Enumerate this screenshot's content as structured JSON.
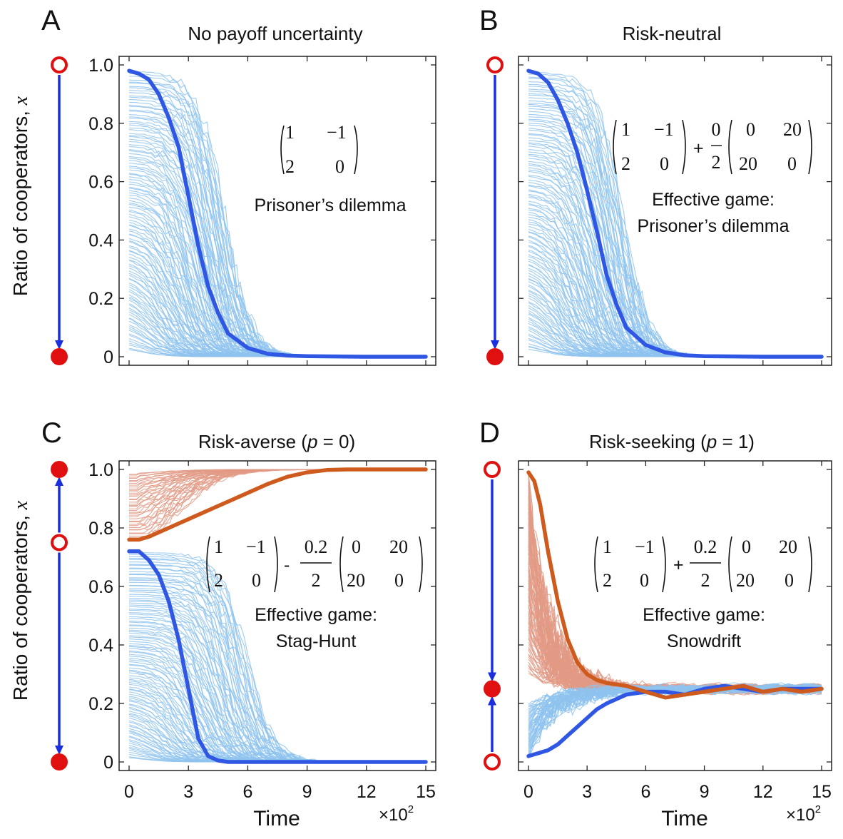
{
  "figure": {
    "y_axis_label": "Ratio of cooperators, ",
    "y_axis_var": "x",
    "x_axis_label": "Time",
    "x_scale_label": "×10",
    "x_scale_exp": "2",
    "colors": {
      "blue_light": "#8ec3ef",
      "blue_bold": "#2f57e4",
      "orange_light": "#e29a85",
      "orange_bold": "#cf5a1d",
      "arrow": "#1a2fe0",
      "circle": "#e01010"
    }
  },
  "chart_data": [
    {
      "id": "A",
      "letter": "A",
      "type": "line",
      "title": "No payoff uncertainty",
      "title_parts": [
        {
          "t": "No payoff uncertainty",
          "i": false
        }
      ],
      "xlabel": "",
      "ylabel": "Ratio of cooperators, x",
      "xlim": [
        0,
        15
      ],
      "ylim": [
        0,
        1
      ],
      "xticks": [
        0,
        3,
        6,
        9,
        12,
        15
      ],
      "show_xtick_labels": false,
      "yticks": [
        0,
        0.2,
        0.4,
        0.6,
        0.8,
        1.0
      ],
      "ytick_labels": [
        "0",
        "0.2",
        "0.4",
        "0.6",
        "0.8",
        "1.0"
      ],
      "bundles": [
        {
          "color": "blue",
          "count": 120,
          "start_range": [
            0.02,
            0.98
          ],
          "behavior": "decay",
          "rate": 0.9
        }
      ],
      "series": [
        {
          "name": "representative",
          "color": "blue_bold",
          "x": [
            0,
            0.5,
            1,
            1.5,
            2,
            2.5,
            3,
            3.5,
            4,
            4.5,
            5,
            6,
            7,
            8,
            9,
            12,
            15
          ],
          "y": [
            0.98,
            0.97,
            0.95,
            0.9,
            0.82,
            0.72,
            0.55,
            0.38,
            0.24,
            0.15,
            0.08,
            0.03,
            0.01,
            0.004,
            0.002,
            0.0,
            0.0
          ]
        }
      ],
      "phase_line": {
        "points": [
          {
            "y": 1.0,
            "kind": "unstable"
          },
          {
            "y": 0.0,
            "kind": "stable"
          }
        ],
        "arrows": [
          {
            "from": 1.0,
            "to": 0.0
          }
        ]
      },
      "payoff_text": {
        "base_matrix": [
          [
            "1",
            "−1"
          ],
          [
            "2",
            "0"
          ]
        ],
        "operator": "",
        "coefficient": "",
        "uncertainty_matrix": [],
        "effective_prefix": "",
        "game_name": "Prisoner’s dilemma"
      }
    },
    {
      "id": "B",
      "letter": "B",
      "type": "line",
      "title": "Risk-neutral",
      "title_parts": [
        {
          "t": "Risk-neutral",
          "i": false
        }
      ],
      "xlabel": "",
      "ylabel": "",
      "xlim": [
        0,
        15
      ],
      "ylim": [
        0,
        1
      ],
      "xticks": [
        0,
        3,
        6,
        9,
        12,
        15
      ],
      "show_xtick_labels": false,
      "yticks": [
        0,
        0.2,
        0.4,
        0.6,
        0.8,
        1.0
      ],
      "ytick_labels": [],
      "bundles": [
        {
          "color": "blue",
          "count": 120,
          "start_range": [
            0.02,
            0.98
          ],
          "behavior": "decay",
          "rate": 0.9
        }
      ],
      "series": [
        {
          "name": "representative",
          "color": "blue_bold",
          "x": [
            0,
            0.5,
            1,
            1.5,
            2,
            2.5,
            3,
            3.5,
            4,
            4.5,
            5,
            6,
            7,
            8,
            9,
            12,
            15
          ],
          "y": [
            0.98,
            0.97,
            0.94,
            0.88,
            0.8,
            0.7,
            0.57,
            0.43,
            0.28,
            0.18,
            0.1,
            0.04,
            0.015,
            0.005,
            0.002,
            0.0,
            0.0
          ]
        }
      ],
      "phase_line": {
        "points": [
          {
            "y": 1.0,
            "kind": "unstable"
          },
          {
            "y": 0.0,
            "kind": "stable"
          }
        ],
        "arrows": [
          {
            "from": 1.0,
            "to": 0.0
          }
        ]
      },
      "payoff_text": {
        "base_matrix": [
          [
            "1",
            "−1"
          ],
          [
            "2",
            "0"
          ]
        ],
        "operator": "+",
        "coefficient_num": "0",
        "coefficient_den": "2",
        "uncertainty_matrix": [
          [
            "0",
            "20"
          ],
          [
            "20",
            "0"
          ]
        ],
        "effective_prefix": "Effective game:",
        "game_name": "Prisoner’s dilemma"
      }
    },
    {
      "id": "C",
      "letter": "C",
      "type": "line",
      "title": "Risk-averse (p = 0)",
      "title_parts": [
        {
          "t": "Risk-averse (",
          "i": false
        },
        {
          "t": "p",
          "i": true
        },
        {
          "t": " = 0)",
          "i": false
        }
      ],
      "xlabel": "Time",
      "ylabel": "Ratio of cooperators, x",
      "xlim": [
        0,
        15
      ],
      "ylim": [
        0,
        1
      ],
      "xticks": [
        0,
        3,
        6,
        9,
        12,
        15
      ],
      "xtick_labels": [
        "0",
        "3",
        "6",
        "9",
        "12",
        "15"
      ],
      "show_xtick_labels": true,
      "x_scale": "×10^2",
      "yticks": [
        0,
        0.2,
        0.4,
        0.6,
        0.8,
        1.0
      ],
      "ytick_labels": [
        "0",
        "0.2",
        "0.4",
        "0.6",
        "0.8",
        "1.0"
      ],
      "bundles": [
        {
          "color": "blue",
          "count": 110,
          "start_range": [
            0.01,
            0.72
          ],
          "behavior": "decay",
          "rate": 1.5
        },
        {
          "color": "orange",
          "count": 40,
          "start_range": [
            0.76,
            0.99
          ],
          "behavior": "rise",
          "rate": 1.0
        }
      ],
      "series": [
        {
          "name": "representative-low",
          "color": "blue_bold",
          "x": [
            0,
            0.5,
            1,
            1.5,
            2,
            2.5,
            3,
            3.5,
            4,
            4.5,
            5,
            6,
            9,
            12,
            15
          ],
          "y": [
            0.72,
            0.72,
            0.69,
            0.64,
            0.55,
            0.42,
            0.25,
            0.08,
            0.02,
            0.005,
            0.0,
            0.0,
            0.0,
            0.0,
            0.0
          ]
        },
        {
          "name": "representative-high",
          "color": "orange_bold",
          "x": [
            0,
            0.5,
            1,
            2,
            3,
            4,
            5,
            6,
            7,
            8,
            9,
            10,
            11,
            12,
            15
          ],
          "y": [
            0.76,
            0.76,
            0.77,
            0.8,
            0.83,
            0.86,
            0.89,
            0.92,
            0.95,
            0.975,
            0.99,
            0.998,
            1.0,
            1.0,
            1.0
          ]
        }
      ],
      "phase_line": {
        "points": [
          {
            "y": 1.0,
            "kind": "stable"
          },
          {
            "y": 0.75,
            "kind": "unstable"
          },
          {
            "y": 0.0,
            "kind": "stable"
          }
        ],
        "arrows": [
          {
            "from": 0.75,
            "to": 1.0
          },
          {
            "from": 0.75,
            "to": 0.0
          }
        ]
      },
      "payoff_text": {
        "base_matrix": [
          [
            "1",
            "−1"
          ],
          [
            "2",
            "0"
          ]
        ],
        "operator": "-",
        "coefficient_num": "0.2",
        "coefficient_den": "2",
        "uncertainty_matrix": [
          [
            "0",
            "20"
          ],
          [
            "20",
            "0"
          ]
        ],
        "effective_prefix": "Effective game:",
        "game_name": "Stag-Hunt"
      }
    },
    {
      "id": "D",
      "letter": "D",
      "type": "line",
      "title": "Risk-seeking (p = 1)",
      "title_parts": [
        {
          "t": "Risk-seeking (",
          "i": false
        },
        {
          "t": "p",
          "i": true
        },
        {
          "t": " = 1)",
          "i": false
        }
      ],
      "xlabel": "Time",
      "ylabel": "",
      "xlim": [
        0,
        15
      ],
      "ylim": [
        0,
        1
      ],
      "xticks": [
        0,
        3,
        6,
        9,
        12,
        15
      ],
      "xtick_labels": [
        "0",
        "3",
        "6",
        "9",
        "12",
        "15"
      ],
      "show_xtick_labels": true,
      "x_scale": "×10^2",
      "yticks": [
        0,
        0.2,
        0.4,
        0.6,
        0.8,
        1.0
      ],
      "ytick_labels": [],
      "bundles": [
        {
          "color": "orange",
          "count": 90,
          "start_range": [
            0.3,
            0.99
          ],
          "behavior": "converge",
          "target": 0.25,
          "rate": 1.4
        },
        {
          "color": "blue",
          "count": 50,
          "start_range": [
            0.01,
            0.2
          ],
          "behavior": "converge",
          "target": 0.25,
          "rate": 1.0
        }
      ],
      "series": [
        {
          "name": "representative-low",
          "color": "blue_bold",
          "x": [
            0,
            0.5,
            1,
            1.5,
            2,
            2.5,
            3,
            3.5,
            4,
            5,
            6,
            7,
            8,
            9,
            10,
            11,
            12,
            13,
            14,
            15
          ],
          "y": [
            0.02,
            0.03,
            0.04,
            0.06,
            0.09,
            0.12,
            0.15,
            0.18,
            0.2,
            0.23,
            0.24,
            0.24,
            0.23,
            0.25,
            0.26,
            0.25,
            0.24,
            0.25,
            0.25,
            0.25
          ]
        },
        {
          "name": "representative-high",
          "color": "orange_bold",
          "x": [
            0,
            0.3,
            0.6,
            1,
            1.5,
            2,
            2.5,
            3,
            3.5,
            4,
            5,
            6,
            7,
            8,
            9,
            10,
            11,
            12,
            13,
            14,
            15
          ],
          "y": [
            0.99,
            0.96,
            0.88,
            0.72,
            0.55,
            0.42,
            0.34,
            0.3,
            0.28,
            0.27,
            0.26,
            0.24,
            0.22,
            0.23,
            0.24,
            0.25,
            0.26,
            0.24,
            0.25,
            0.24,
            0.25
          ]
        }
      ],
      "phase_line": {
        "points": [
          {
            "y": 1.0,
            "kind": "unstable"
          },
          {
            "y": 0.25,
            "kind": "stable"
          },
          {
            "y": 0.0,
            "kind": "unstable"
          }
        ],
        "arrows": [
          {
            "from": 1.0,
            "to": 0.25
          },
          {
            "from": 0.0,
            "to": 0.25
          }
        ]
      },
      "payoff_text": {
        "base_matrix": [
          [
            "1",
            "−1"
          ],
          [
            "2",
            "0"
          ]
        ],
        "operator": "+",
        "coefficient_num": "0.2",
        "coefficient_den": "2",
        "uncertainty_matrix": [
          [
            "0",
            "20"
          ],
          [
            "20",
            "0"
          ]
        ],
        "effective_prefix": "Effective game:",
        "game_name": "Snowdrift"
      }
    }
  ]
}
